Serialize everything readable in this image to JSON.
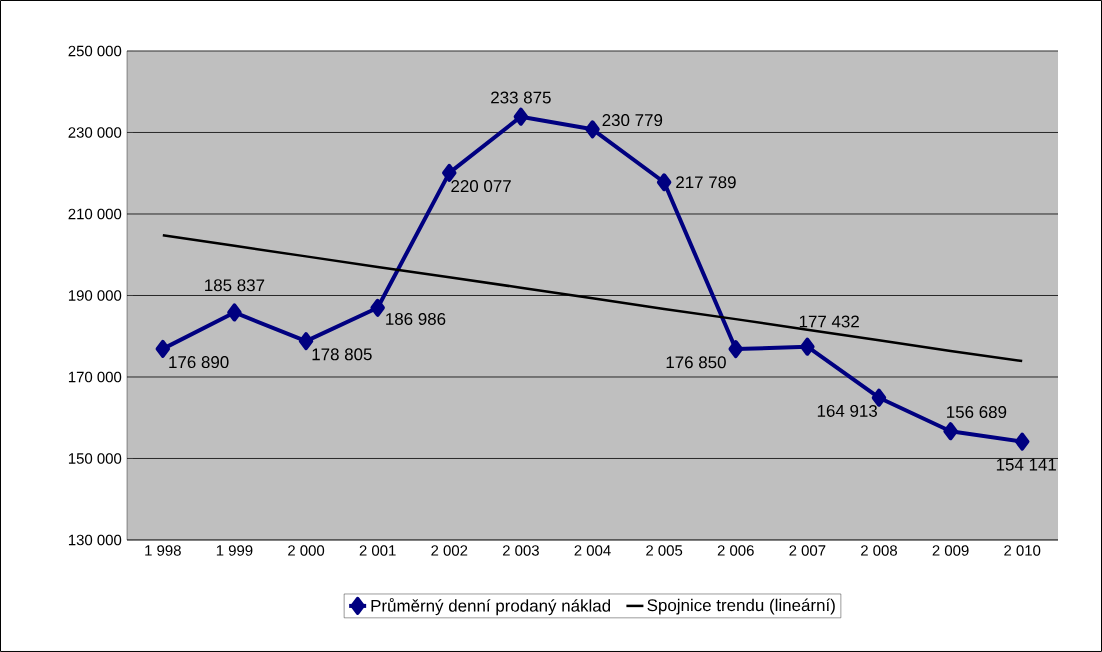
{
  "chart_data": {
    "type": "line",
    "categories": [
      "1 998",
      "1 999",
      "2 000",
      "2 001",
      "2 002",
      "2 003",
      "2 004",
      "2 005",
      "2 006",
      "2 007",
      "2 008",
      "2 009",
      "2 010"
    ],
    "series": [
      {
        "name": "Průměrný denní prodaný náklad",
        "color": "#000080",
        "marker": "diamond",
        "values": [
          176890,
          185837,
          178805,
          186986,
          220077,
          233875,
          230779,
          217789,
          176850,
          177432,
          164913,
          156689,
          154141
        ],
        "value_labels": [
          "176 890",
          "185 837",
          "178 805",
          "186 986",
          "220 077",
          "233 875",
          "230 779",
          "217 789",
          "176 850",
          "177 432",
          "164 913",
          "156 689",
          "154 141"
        ]
      },
      {
        "name": "Spojnice trendu (lineární)",
        "color": "#000000",
        "marker": "none",
        "values": [
          204800,
          202200,
          199600,
          197000,
          194500,
          191900,
          189300,
          186700,
          184200,
          181600,
          179000,
          176400,
          173900
        ]
      }
    ],
    "ylim": [
      130000,
      250000
    ],
    "yticks": [
      {
        "value": 130000,
        "label": "130 000"
      },
      {
        "value": 150000,
        "label": "150 000"
      },
      {
        "value": 170000,
        "label": "170 000"
      },
      {
        "value": 190000,
        "label": "190 000"
      },
      {
        "value": 210000,
        "label": "210 000"
      },
      {
        "value": 230000,
        "label": "230 000"
      },
      {
        "value": 250000,
        "label": "250 000"
      }
    ],
    "grid": "y",
    "legend": "bottom"
  }
}
